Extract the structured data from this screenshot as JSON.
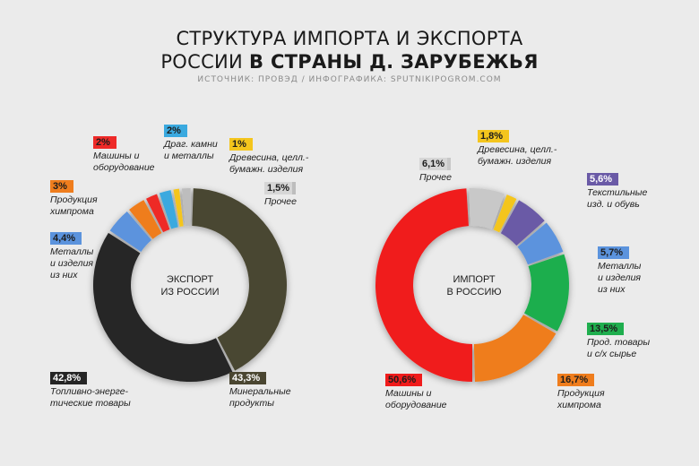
{
  "header": {
    "title_line1": "СТРУКТУРА ИМПОРТА И ЭКСПОРТА",
    "title_line2_light": "РОССИИ",
    "title_line2_bold": "В СТРАНЫ Д. ЗАРУБЕЖЬЯ",
    "source": "ИСТОЧНИК: ПРОВЭД / ИНФОГРАФИКА: SPUTNIKIPOGROM.COM"
  },
  "chart_data": [
    {
      "type": "pie",
      "title": "ЭКСПОРТ ИЗ РОССИИ",
      "center_line1": "ЭКСПОРТ",
      "center_line2": "ИЗ РОССИИ",
      "slices": [
        {
          "label": "Минеральные продукты",
          "text_line1": "Минеральные",
          "text_line2": "продукты",
          "pct_label": "43,3%",
          "value": 43.3,
          "color": "#4a4631"
        },
        {
          "label": "Топливно-энергетические товары",
          "text_line1": "Топливно-энерге-",
          "text_line2": "тические товары",
          "pct_label": "42,8%",
          "value": 42.8,
          "color": "#252525"
        },
        {
          "label": "Металлы и изделия из них",
          "text_line1": "Металлы",
          "text_line2": "и изделия",
          "text_line3": "из них",
          "pct_label": "4,4%",
          "value": 4.4,
          "color": "#5b93dd"
        },
        {
          "label": "Продукция химпрома",
          "text_line1": "Продукция",
          "text_line2": "химпрома",
          "pct_label": "3%",
          "value": 3,
          "color": "#ef7d1d"
        },
        {
          "label": "Машины и оборудование",
          "text_line1": "Машины и",
          "text_line2": "оборудование",
          "pct_label": "2%",
          "value": 2,
          "color": "#ee2a28"
        },
        {
          "label": "Драг. камни и металлы",
          "text_line1": "Драг. камни",
          "text_line2": "и металлы",
          "pct_label": "2%",
          "value": 2,
          "color": "#3aa9df"
        },
        {
          "label": "Древесина, целл.-бумажн. изделия",
          "text_line1": "Древесина, целл.-",
          "text_line2": "бумажн. изделия",
          "pct_label": "1%",
          "value": 1,
          "color": "#f4c51d"
        },
        {
          "label": "Прочее",
          "text_line1": "Прочее",
          "pct_label": "1,5%",
          "value": 1.5,
          "color": "#bdbdbd"
        }
      ]
    },
    {
      "type": "pie",
      "title": "ИМПОРТ В РОССИЮ",
      "center_line1": "ИМПОРТ",
      "center_line2": "В РОССИЮ",
      "slices": [
        {
          "label": "Машины и оборудование",
          "text_line1": "Машины и",
          "text_line2": "оборудование",
          "pct_label": "50,6%",
          "value": 50.6,
          "color": "#f01c1c"
        },
        {
          "label": "Прочее",
          "text_line1": "Прочее",
          "pct_label": "6,1%",
          "value": 6.1,
          "color": "#c8c8c8"
        },
        {
          "label": "Древесина, целл.-бумажн. изделия",
          "text_line1": "Древесина, целл.-",
          "text_line2": "бумажн. изделия",
          "pct_label": "1,8%",
          "value": 1.8,
          "color": "#f4c51d"
        },
        {
          "label": "Текстильные изд. и обувь",
          "text_line1": "Текстильные",
          "text_line2": "изд. и обувь",
          "pct_label": "5,6%",
          "value": 5.6,
          "color": "#6a5aa6"
        },
        {
          "label": "Металлы и изделия из них",
          "text_line1": "Металлы",
          "text_line2": "и изделия",
          "text_line3": "из них",
          "pct_label": "5,7%",
          "value": 5.7,
          "color": "#5b93dd"
        },
        {
          "label": "Прод. товары и с/х сырье",
          "text_line1": "Прод. товары",
          "text_line2": "и с/х сырье",
          "pct_label": "13,5%",
          "value": 13.5,
          "color": "#1fae4e"
        },
        {
          "label": "Продукция химпрома",
          "text_line1": "Продукция",
          "text_line2": "химпрома",
          "pct_label": "16,7%",
          "value": 16.7,
          "color": "#ef7d1d"
        }
      ]
    }
  ]
}
